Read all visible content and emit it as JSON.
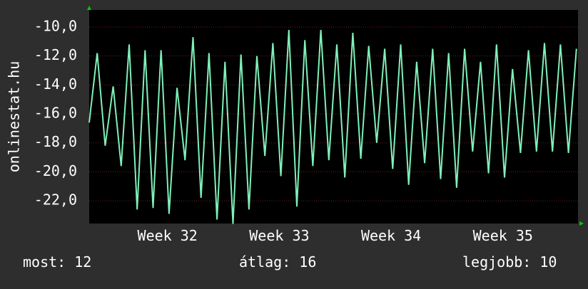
{
  "chart_data": {
    "type": "line",
    "y_label": "onlinestat.hu",
    "x": [
      0,
      0.5,
      1,
      1.5,
      2,
      2.5,
      3,
      3.5,
      4,
      4.5,
      5,
      5.5,
      6,
      6.5,
      7,
      7.5,
      8,
      8.5,
      9,
      9.5,
      10,
      10.5,
      11,
      11.5,
      12,
      12.5,
      13,
      13.5,
      14,
      14.5,
      15,
      15.5,
      16,
      16.5,
      17,
      17.5,
      18,
      18.5,
      19,
      19.5,
      20,
      20.5,
      21,
      21.5,
      22,
      22.5,
      23,
      23.5,
      24,
      24.5,
      25,
      25.5,
      26,
      26.5,
      27,
      27.5,
      28,
      28.5,
      29,
      29.5,
      30,
      30.5
    ],
    "series": [
      {
        "color": "#7ff0b8",
        "values": [
          -16.6,
          -11.8,
          -18.2,
          -14.1,
          -19.6,
          -11.2,
          -22.6,
          -11.6,
          -22.5,
          -11.6,
          -22.9,
          -14.2,
          -19.2,
          -10.7,
          -21.8,
          -11.8,
          -23.3,
          -12.4,
          -23.6,
          -11.9,
          -22.6,
          -12.0,
          -18.9,
          -11.1,
          -20.3,
          -10.2,
          -22.4,
          -10.9,
          -19.6,
          -10.2,
          -19.2,
          -11.2,
          -20.4,
          -10.4,
          -19.1,
          -11.3,
          -18.0,
          -11.5,
          -19.8,
          -11.2,
          -20.9,
          -12.4,
          -19.4,
          -11.5,
          -20.5,
          -11.8,
          -21.1,
          -11.5,
          -18.6,
          -12.4,
          -20.1,
          -11.2,
          -20.4,
          -12.9,
          -18.7,
          -11.6,
          -18.6,
          -11.1,
          -18.6,
          -11.2,
          -18.7,
          -11.5
        ]
      }
    ],
    "xlim": [
      0,
      30.6
    ],
    "xticks": [
      {
        "value": 4.9,
        "label": "Week 32"
      },
      {
        "value": 11.9,
        "label": "Week 33"
      },
      {
        "value": 18.9,
        "label": "Week 34"
      },
      {
        "value": 25.9,
        "label": "Week 35"
      }
    ],
    "ylim": [
      -23.57,
      -8.82
    ],
    "yticks": [
      {
        "value": -10,
        "label": "-10,0"
      },
      {
        "value": -12,
        "label": "-12,0"
      },
      {
        "value": -14,
        "label": "-14,0"
      },
      {
        "value": -16,
        "label": "-16,0"
      },
      {
        "value": -18,
        "label": "-18,0"
      },
      {
        "value": -20,
        "label": "-20,0"
      },
      {
        "value": -22,
        "label": "-22,0"
      }
    ],
    "grid": true,
    "footer": [
      "most: 12",
      "átlag: 16",
      "legjobb: 10"
    ]
  }
}
